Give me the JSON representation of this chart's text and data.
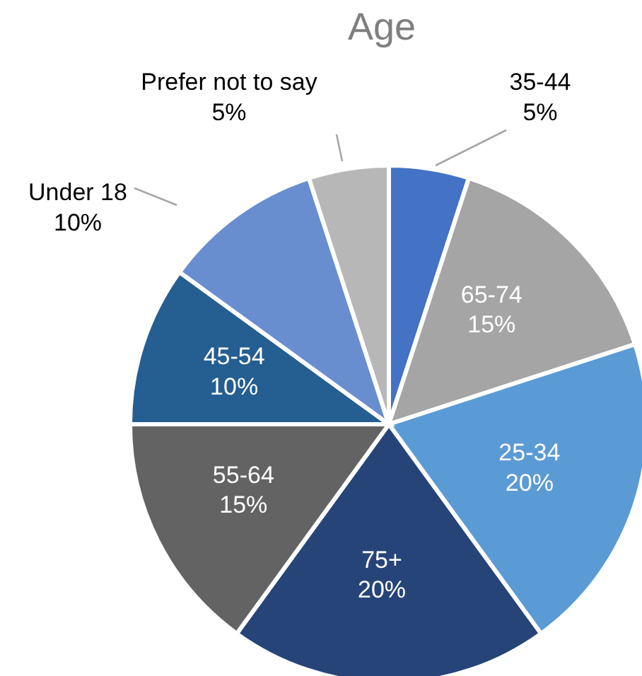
{
  "chart_data": {
    "type": "pie",
    "title": "Age",
    "categories": [
      "35-44",
      "65-74",
      "25-34",
      "75+",
      "55-64",
      "45-54",
      "Under 18",
      "Prefer not to say"
    ],
    "values": [
      5,
      15,
      20,
      20,
      15,
      10,
      10,
      5
    ],
    "colors": [
      "#4472c4",
      "#a5a5a5",
      "#5b9bd5",
      "#264478",
      "#636363",
      "#255e91",
      "#698ed0",
      "#b7b7b7"
    ],
    "value_labels": [
      "5%",
      "15%",
      "20%",
      "20%",
      "15%",
      "10%",
      "10%",
      "5%"
    ]
  }
}
